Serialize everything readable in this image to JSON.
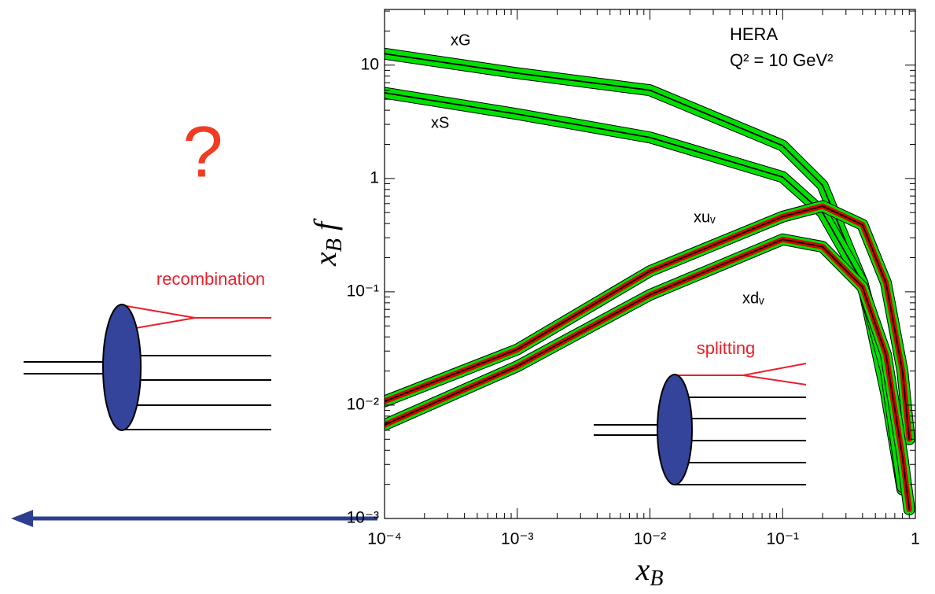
{
  "chart_data": {
    "type": "line",
    "x_label": {
      "base": "x",
      "sub": "B"
    },
    "y_label": {
      "base": "x",
      "sub": "B",
      "tail": "f"
    },
    "x": [
      0.0001,
      0.001,
      0.01,
      0.1,
      0.2,
      0.4,
      0.6,
      0.8,
      0.9
    ],
    "series": [
      {
        "name": "xG",
        "color": "#000000",
        "band_color": "#00e000",
        "values": [
          12.6,
          8.5,
          6.0,
          1.95,
          0.87,
          0.12,
          0.013,
          0.0018,
          null
        ]
      },
      {
        "name": "xS",
        "color": "#000000",
        "band_color": "#00e000",
        "values": [
          5.7,
          3.7,
          2.3,
          1.03,
          0.5,
          0.12,
          0.02,
          0.0019,
          null
        ]
      },
      {
        "name": "xuᵥ",
        "color": "#000000",
        "band_color": "#00e000",
        "core_color": "#e00000",
        "values": [
          0.0108,
          0.031,
          0.152,
          0.46,
          0.57,
          0.39,
          0.12,
          0.02,
          0.005
        ]
      },
      {
        "name": "xdᵥ",
        "color": "#000000",
        "band_color": "#00e000",
        "core_color": "#e00000",
        "values": [
          0.0067,
          0.022,
          0.094,
          0.29,
          0.25,
          0.11,
          0.028,
          0.0035,
          0.0012
        ]
      }
    ],
    "xlog": true,
    "ylog": true,
    "xlim": [
      0.0001,
      1
    ],
    "ylim": [
      0.001,
      31
    ],
    "xticks": [
      {
        "value": 0.0001,
        "label": "10⁻⁴"
      },
      {
        "value": 0.001,
        "label": "10⁻³"
      },
      {
        "value": 0.01,
        "label": "10⁻²"
      },
      {
        "value": 0.1,
        "label": "10⁻¹"
      },
      1
    ],
    "yticks": [
      {
        "value": 0.001,
        "label": "10⁻³"
      },
      {
        "value": 0.01,
        "label": "10⁻²"
      },
      {
        "value": 0.1,
        "label": "10⁻¹"
      },
      1,
      10
    ],
    "annotations": {
      "experiment": "HERA",
      "scale": "Q² = 10 GeV²",
      "question": "?",
      "recombination": "recombination",
      "splitting": "splitting"
    }
  }
}
